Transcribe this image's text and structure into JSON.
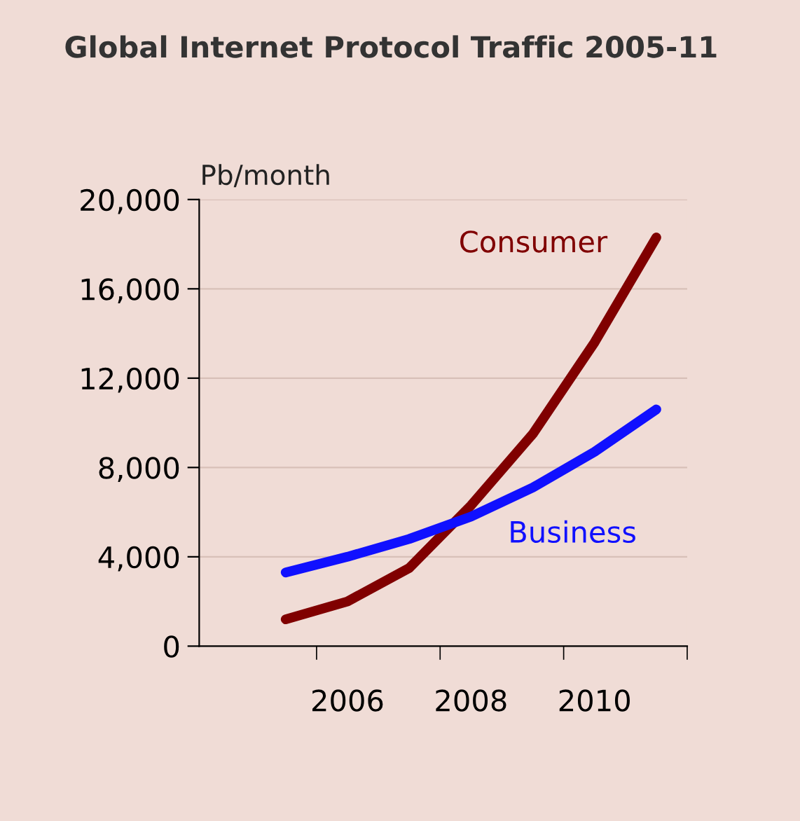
{
  "chart_data": {
    "type": "line",
    "title": "Global Internet Protocol Traffic 2005-11",
    "ylabel": "Pb/month",
    "x": [
      2005,
      2006,
      2007,
      2008,
      2009,
      2010,
      2011
    ],
    "series": [
      {
        "name": "Consumer",
        "color": "#800000",
        "values": [
          1200,
          2000,
          3500,
          6300,
          9500,
          13600,
          18300
        ]
      },
      {
        "name": "Business",
        "color": "#1010ff",
        "values": [
          3300,
          4000,
          4800,
          5800,
          7100,
          8700,
          10600
        ]
      }
    ],
    "xlim": [
      2003.6,
      2011.5
    ],
    "xticks": [
      {
        "value": 2005.5,
        "label": null
      },
      {
        "value": 2006,
        "label": "2006"
      },
      {
        "value": 2007.5,
        "label": null
      },
      {
        "value": 2008,
        "label": "2008"
      },
      {
        "value": 2009.5,
        "label": null
      },
      {
        "value": 2010,
        "label": "2010"
      },
      {
        "value": 2011.5,
        "label": null
      }
    ],
    "ylim": [
      0,
      20000
    ],
    "yticks": [
      0,
      {
        "value": 4000,
        "label": "4,000"
      },
      {
        "value": 8000,
        "label": "8,000"
      },
      {
        "value": 12000,
        "label": "12,000"
      },
      {
        "value": 16000,
        "label": "16,000"
      },
      {
        "value": 20000,
        "label": "20,000"
      }
    ],
    "grid": "y",
    "legend": false,
    "marker": "none",
    "line_style": "solid"
  }
}
